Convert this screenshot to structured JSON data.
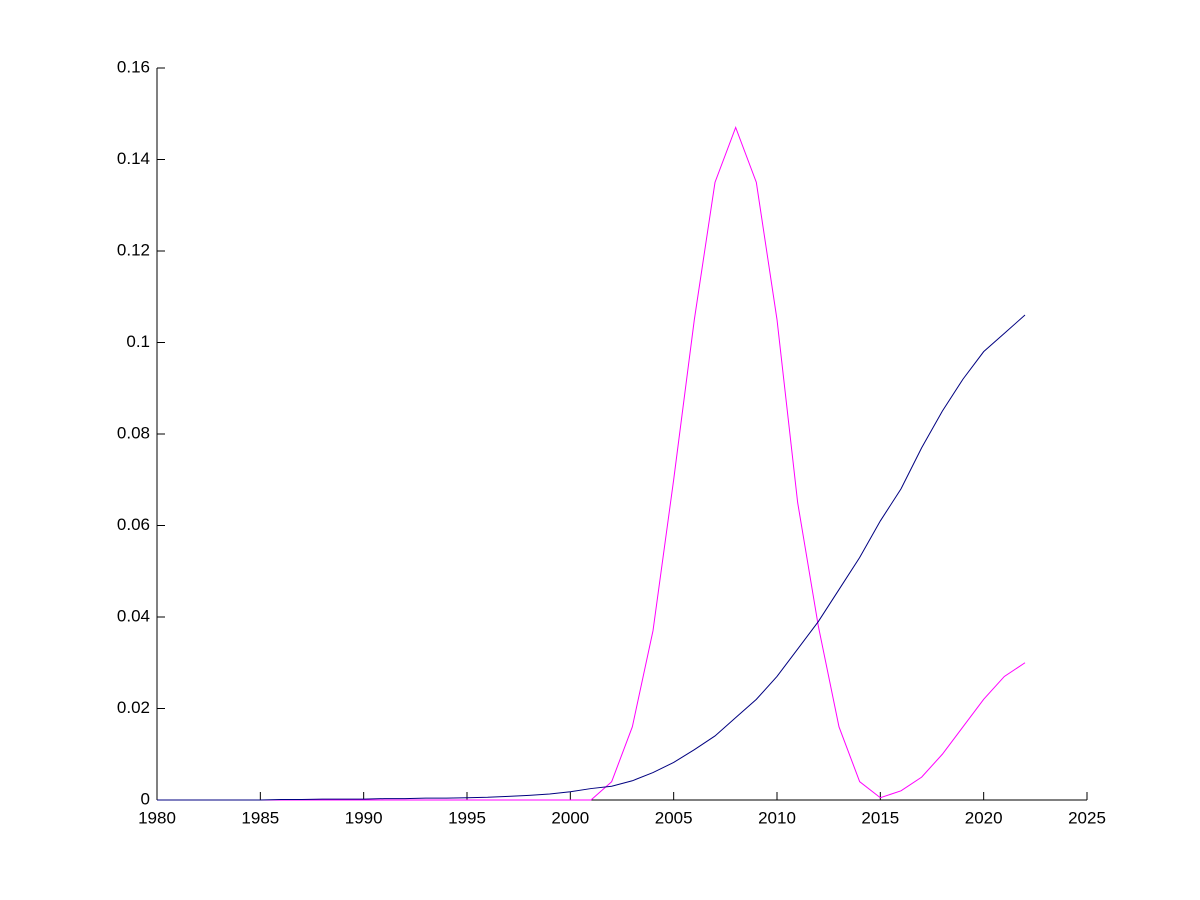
{
  "chart_data": {
    "type": "line",
    "x": [
      1980,
      1981,
      1982,
      1983,
      1984,
      1985,
      1986,
      1987,
      1988,
      1989,
      1990,
      1991,
      1992,
      1993,
      1994,
      1995,
      1996,
      1997,
      1998,
      1999,
      2000,
      2001,
      2002,
      2003,
      2004,
      2005,
      2006,
      2007,
      2008,
      2009,
      2010,
      2011,
      2012,
      2013,
      2014,
      2015,
      2016,
      2017,
      2018,
      2019,
      2020,
      2021,
      2022
    ],
    "series": [
      {
        "color": "#ff00ff",
        "values": [
          0,
          0,
          0,
          0,
          0,
          0,
          0,
          0,
          0,
          0,
          0,
          0,
          0,
          0,
          0,
          0,
          0,
          0,
          0,
          0,
          0,
          0,
          0.004,
          0.016,
          0.037,
          0.07,
          0.105,
          0.135,
          0.147,
          0.135,
          0.105,
          0.065,
          0.038,
          0.016,
          0.004,
          0.0005,
          0.002,
          0.005,
          0.01,
          0.016,
          0.022,
          0.027,
          0.03
        ]
      },
      {
        "color": "#000080",
        "values": [
          0,
          0,
          0,
          0,
          0,
          0,
          0.0001,
          0.0001,
          0.0002,
          0.0002,
          0.0002,
          0.0003,
          0.0003,
          0.0004,
          0.0004,
          0.0005,
          0.0006,
          0.0008,
          0.001,
          0.0013,
          0.0018,
          0.0025,
          0.003,
          0.0042,
          0.006,
          0.0082,
          0.011,
          0.014,
          0.018,
          0.022,
          0.027,
          0.033,
          0.039,
          0.046,
          0.053,
          0.061,
          0.068,
          0.077,
          0.085,
          0.092,
          0.098,
          0.102,
          0.106
        ]
      }
    ],
    "xlim": [
      1980,
      2025
    ],
    "xticks": [
      1980,
      1985,
      1990,
      1995,
      2000,
      2005,
      2010,
      2015,
      2020,
      2025
    ],
    "ylim": [
      0,
      0.16
    ],
    "yticks": [
      0,
      0.02,
      0.04,
      0.06,
      0.08,
      0.1,
      0.12,
      0.14,
      0.16
    ]
  }
}
